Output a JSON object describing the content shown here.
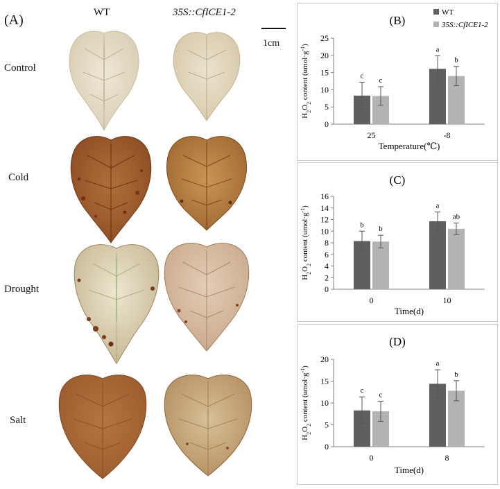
{
  "left_panel": {
    "label": "(A)",
    "columns": [
      "WT",
      "35S::CfICE1-2"
    ],
    "rows": [
      "Control",
      "Cold",
      "Drought",
      "Salt"
    ],
    "scale_bar": "1cm"
  },
  "colors": {
    "wt": "#5f5f5f",
    "transgenic": "#b3b3b3",
    "axis": "#7f7f7f",
    "error": "#555555"
  },
  "legend": [
    "WT",
    "35S::CfICE1-2"
  ],
  "chart_data": [
    {
      "type": "bar",
      "panel": "(B)",
      "categories": [
        "25",
        "-8"
      ],
      "xlabel": "Temperature(℃)",
      "ylabel": "H2O2 content (umol·g-1)",
      "ylim": [
        0,
        25
      ],
      "yticks": [
        0,
        5,
        10,
        15,
        20,
        25
      ],
      "series": [
        {
          "name": "WT",
          "values": [
            8.3,
            16.1
          ],
          "errors": [
            3.9,
            3.8
          ],
          "letters": [
            "c",
            "a"
          ]
        },
        {
          "name": "35S::CfICE1-2",
          "values": [
            8.2,
            14.0
          ],
          "errors": [
            2.7,
            2.8
          ],
          "letters": [
            "c",
            "b"
          ]
        }
      ]
    },
    {
      "type": "bar",
      "panel": "(C)",
      "categories": [
        "0",
        "10"
      ],
      "xlabel": "Time(d)",
      "ylabel": "H2O2 content (umol·g-1)",
      "ylim": [
        0,
        16
      ],
      "yticks": [
        0,
        2,
        4,
        6,
        8,
        10,
        12,
        14,
        16
      ],
      "series": [
        {
          "name": "WT",
          "values": [
            8.3,
            11.7
          ],
          "errors": [
            1.7,
            1.6
          ],
          "letters": [
            "b",
            "a"
          ]
        },
        {
          "name": "35S::CfICE1-2",
          "values": [
            8.2,
            10.4
          ],
          "errors": [
            1.1,
            1.0
          ],
          "letters": [
            "b",
            "ab"
          ]
        }
      ]
    },
    {
      "type": "bar",
      "panel": "(D)",
      "categories": [
        "0",
        "8"
      ],
      "xlabel": "Time(d)",
      "ylabel": "H2O2 content (umol·g-1)",
      "ylim": [
        0,
        20
      ],
      "yticks": [
        0,
        5,
        10,
        15,
        20
      ],
      "series": [
        {
          "name": "WT",
          "values": [
            8.3,
            14.4
          ],
          "errors": [
            3.1,
            3.2
          ],
          "letters": [
            "c",
            "a"
          ]
        },
        {
          "name": "35S::CfICE1-2",
          "values": [
            8.1,
            12.8
          ],
          "errors": [
            2.3,
            2.3
          ],
          "letters": [
            "c",
            "b"
          ]
        }
      ]
    }
  ]
}
